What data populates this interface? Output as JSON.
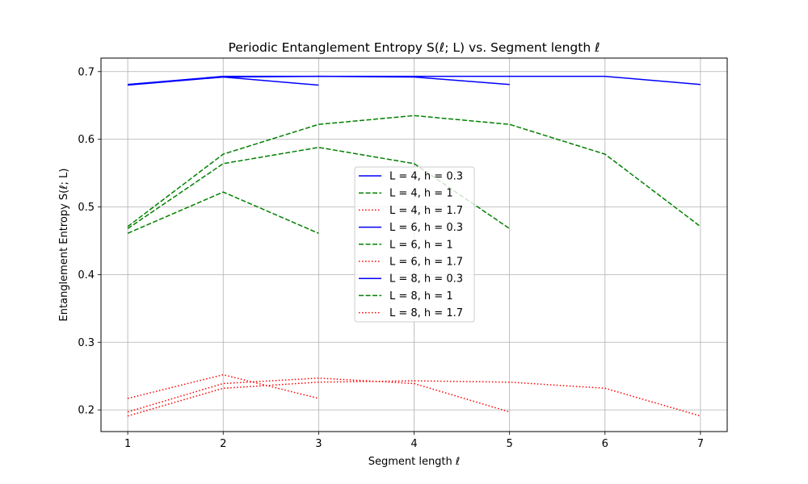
{
  "chart_data": {
    "type": "line",
    "title": "Periodic Entanglement Entropy S(ℓ; L) vs. Segment length ℓ",
    "xlabel": "Segment length ℓ",
    "ylabel": "Entanglement Entropy S(ℓ; L)",
    "xlim": [
      0.72,
      7.28
    ],
    "ylim": [
      0.168,
      0.72
    ],
    "xticks": [
      1,
      2,
      3,
      4,
      5,
      6,
      7
    ],
    "yticks": [
      0.2,
      0.3,
      0.4,
      0.5,
      0.6,
      0.7
    ],
    "grid": true,
    "legend_position": "center",
    "series": [
      {
        "name": "L = 4, h = 0.3",
        "color": "#0000ff",
        "style": "solid",
        "x": [
          1,
          2,
          3
        ],
        "y": [
          0.68,
          0.692,
          0.68
        ]
      },
      {
        "name": "L = 4, h = 1",
        "color": "#008000",
        "style": "dashed",
        "x": [
          1,
          2,
          3
        ],
        "y": [
          0.461,
          0.522,
          0.461
        ]
      },
      {
        "name": "L = 4, h = 1.7",
        "color": "#ff0000",
        "style": "dotted",
        "x": [
          1,
          2,
          3
        ],
        "y": [
          0.217,
          0.252,
          0.217
        ]
      },
      {
        "name": "L = 6, h = 0.3",
        "color": "#0000ff",
        "style": "solid",
        "x": [
          1,
          2,
          3,
          4,
          5
        ],
        "y": [
          0.681,
          0.692,
          0.693,
          0.692,
          0.681
        ]
      },
      {
        "name": "L = 6, h = 1",
        "color": "#008000",
        "style": "dashed",
        "x": [
          1,
          2,
          3,
          4,
          5
        ],
        "y": [
          0.468,
          0.564,
          0.588,
          0.564,
          0.468
        ]
      },
      {
        "name": "L = 6, h = 1.7",
        "color": "#ff0000",
        "style": "dotted",
        "x": [
          1,
          2,
          3,
          4,
          5
        ],
        "y": [
          0.197,
          0.239,
          0.247,
          0.239,
          0.197
        ]
      },
      {
        "name": "L = 8, h = 0.3",
        "color": "#0000ff",
        "style": "solid",
        "x": [
          1,
          2,
          3,
          4,
          5,
          6,
          7
        ],
        "y": [
          0.681,
          0.693,
          0.693,
          0.693,
          0.693,
          0.693,
          0.681
        ]
      },
      {
        "name": "L = 8, h = 1",
        "color": "#008000",
        "style": "dashed",
        "x": [
          1,
          2,
          3,
          4,
          5,
          6,
          7
        ],
        "y": [
          0.471,
          0.578,
          0.622,
          0.635,
          0.622,
          0.578,
          0.471
        ]
      },
      {
        "name": "L = 8, h = 1.7",
        "color": "#ff0000",
        "style": "dotted",
        "x": [
          1,
          2,
          3,
          4,
          5,
          6,
          7
        ],
        "y": [
          0.191,
          0.232,
          0.241,
          0.243,
          0.241,
          0.232,
          0.191
        ]
      }
    ]
  }
}
